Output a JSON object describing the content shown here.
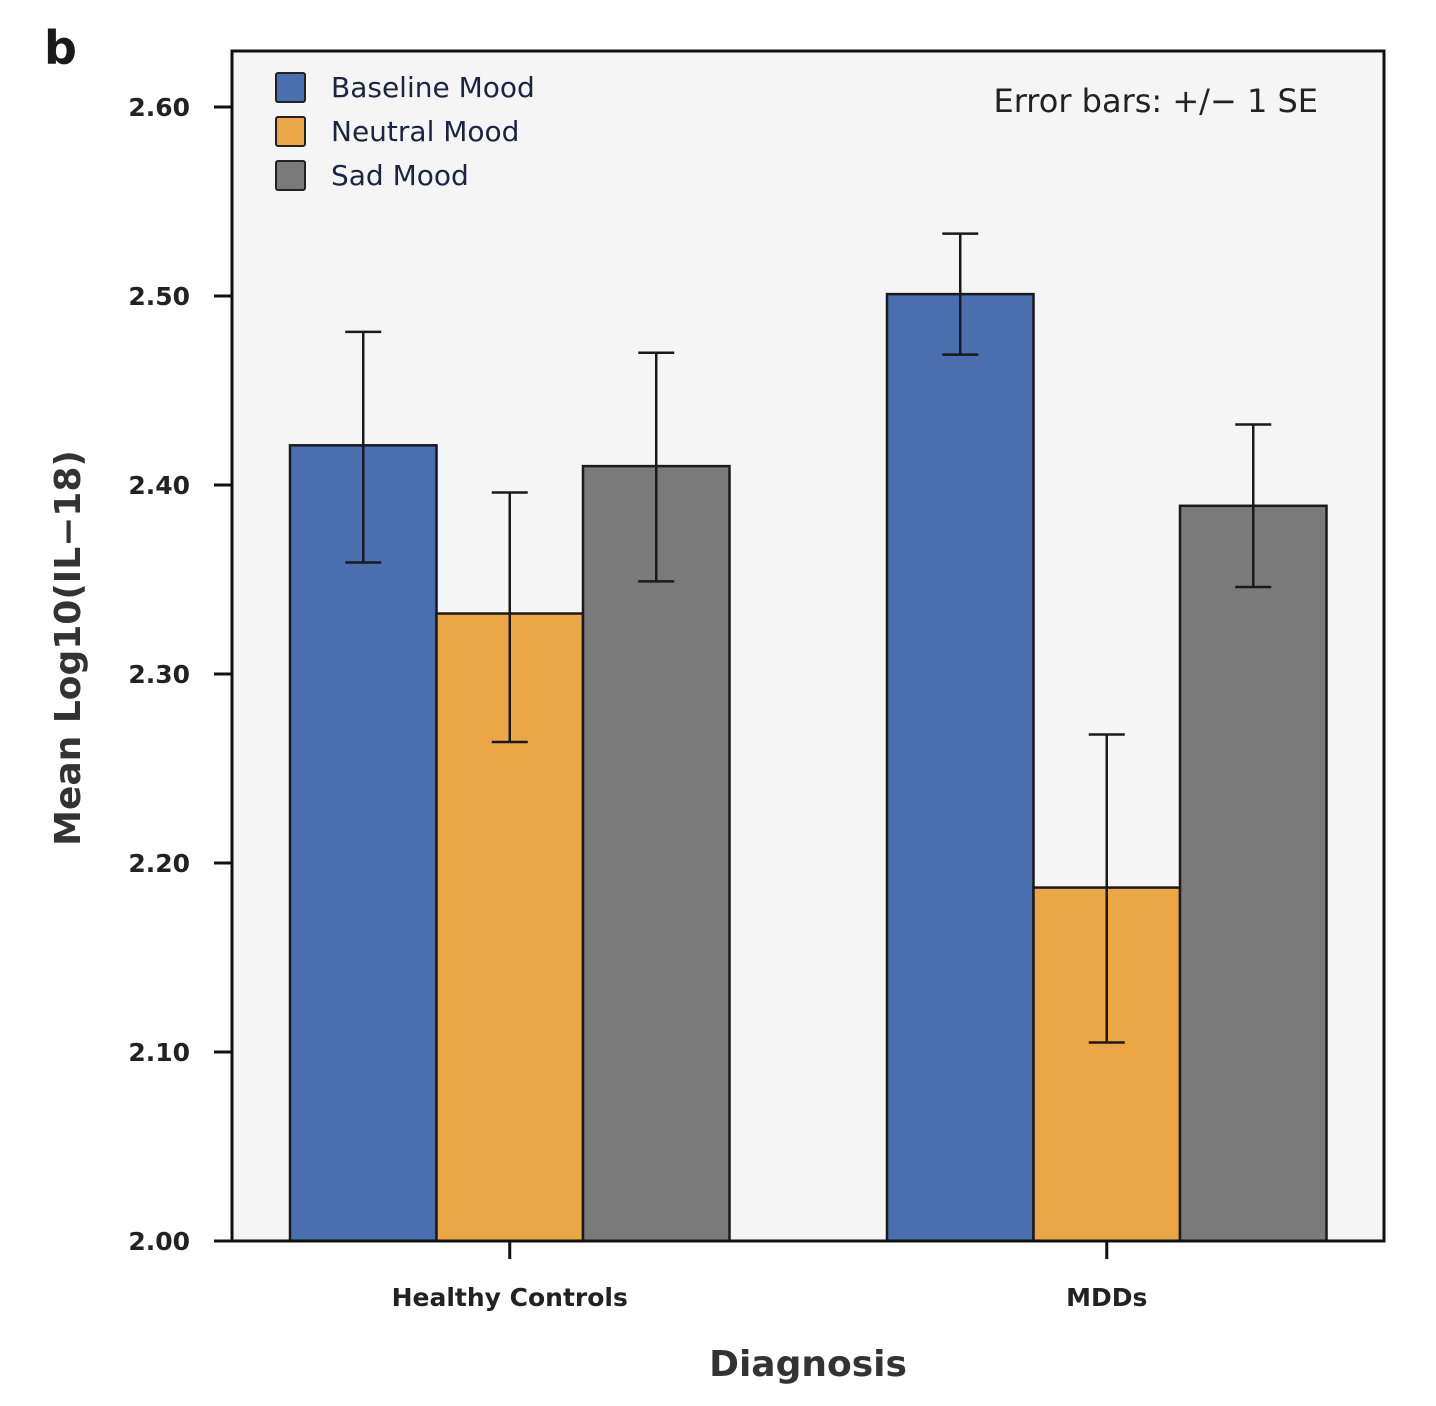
{
  "panel_label": "b",
  "chart_data": {
    "type": "bar",
    "title": "",
    "xlabel": "Diagnosis",
    "ylabel": "Mean Log10(IL−18)",
    "ylim": [
      2.0,
      2.63
    ],
    "yticks": [
      2.0,
      2.1,
      2.2,
      2.3,
      2.4,
      2.5,
      2.6
    ],
    "ytick_labels": [
      "2.00",
      "2.10",
      "2.20",
      "2.30",
      "2.40",
      "2.50",
      "2.60"
    ],
    "categories": [
      "Healthy Controls",
      "MDDs"
    ],
    "grid": false,
    "legend_position": "top-left",
    "annotation": "Error bars: +/− 1 SE",
    "series": [
      {
        "name": "Baseline Mood",
        "color": "#4a6faf",
        "values": [
          2.421,
          2.501
        ],
        "error_low": [
          2.359,
          2.469
        ],
        "error_high": [
          2.481,
          2.533
        ]
      },
      {
        "name": "Neutral Mood",
        "color": "#eba745",
        "values": [
          2.332,
          2.187
        ],
        "error_low": [
          2.264,
          2.105
        ],
        "error_high": [
          2.396,
          2.268
        ]
      },
      {
        "name": "Sad Mood",
        "color": "#7a7a7a",
        "values": [
          2.41,
          2.389
        ],
        "error_low": [
          2.349,
          2.346
        ],
        "error_high": [
          2.47,
          2.432
        ]
      }
    ],
    "plot_background": "#f5f5f5"
  }
}
